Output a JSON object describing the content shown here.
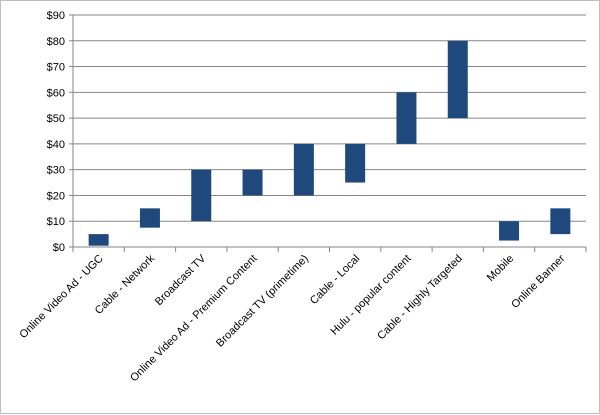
{
  "chart_data": {
    "type": "bar",
    "subtype": "floating-range",
    "title": "",
    "xlabel": "",
    "ylabel": "",
    "ylim": [
      0,
      90
    ],
    "y_ticks": [
      "$0",
      "$10",
      "$20",
      "$30",
      "$40",
      "$50",
      "$60",
      "$70",
      "$80",
      "$90"
    ],
    "y_tick_values": [
      0,
      10,
      20,
      30,
      40,
      50,
      60,
      70,
      80,
      90
    ],
    "grid": "horizontal",
    "legend": "none",
    "bar_color": "#1f497d",
    "categories": [
      "Online Video Ad - UGC",
      "Cable - Network",
      "Broadcast TV",
      "Online Video Ad - Premium Content",
      "Broadcast TV (primetime)",
      "Cable - Local",
      "Hulu - popular content",
      "Cable - Highly Targeted",
      "Mobile",
      "Online Banner"
    ],
    "low": [
      0.5,
      7.5,
      10,
      20,
      20,
      25,
      40,
      50,
      2.5,
      5
    ],
    "high": [
      5,
      15,
      30,
      30,
      40,
      40,
      60,
      80,
      10,
      15
    ]
  }
}
